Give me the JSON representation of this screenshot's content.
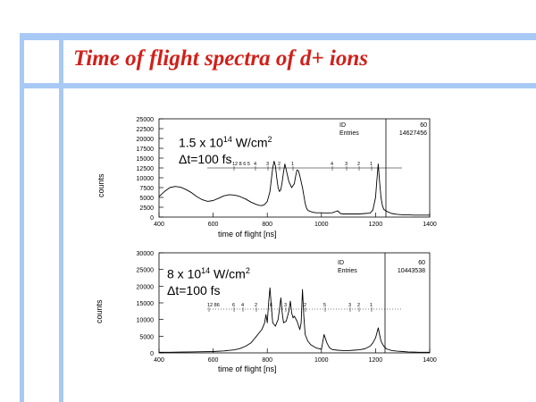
{
  "slide": {
    "title": "Time of flight spectra of d+ ions",
    "accent_color": "#a9c9f5",
    "title_color": "#d0201a"
  },
  "chart_data": [
    {
      "type": "line",
      "xlabel": "time of flight [ns]",
      "ylabel": "counts",
      "xlim": [
        400,
        1400
      ],
      "ylim": [
        0,
        25000
      ],
      "xticks": [
        400,
        600,
        800,
        1000,
        1200,
        1400
      ],
      "yticks": [
        0,
        2500,
        5000,
        7500,
        10000,
        12500,
        15000,
        17500,
        20000,
        22500,
        25000
      ],
      "ytick_labels": [
        "0",
        "2500",
        "5000",
        "7500",
        "10000",
        "12500",
        "15000",
        "17500",
        "20000",
        "22500",
        "25000"
      ],
      "conditions": {
        "intensity_base": "1.5 x 10",
        "intensity_exp": "14",
        "intensity_unit": " W/cm",
        "intensity_unit_exp": "2",
        "delta_t": "Δt=100 fs"
      },
      "stats": {
        "id_label": "ID",
        "id_value": "60",
        "entries_label": "Entries",
        "entries_value": "14627456"
      },
      "charge_state_labels": [
        "12 8 6 5",
        "4",
        "3",
        "2",
        "1",
        "4",
        "3",
        "2",
        "1"
      ],
      "series": [
        {
          "x": [
            400,
            420,
            440,
            460,
            480,
            500,
            520,
            540,
            560,
            580,
            600,
            620,
            640,
            660,
            680,
            700,
            720,
            740,
            760,
            770,
            780,
            790,
            800,
            810,
            815,
            820,
            825,
            830,
            835,
            840,
            845,
            850,
            855,
            860,
            865,
            870,
            880,
            890,
            900,
            905,
            910,
            915,
            920,
            925,
            930,
            935,
            940,
            945,
            950,
            960,
            970,
            980,
            1000,
            1020,
            1040,
            1060,
            1070,
            1080,
            1100,
            1120,
            1140,
            1160,
            1180,
            1190,
            1200,
            1205,
            1210,
            1215,
            1220,
            1225,
            1230,
            1240,
            1260,
            1280,
            1300,
            1320,
            1340,
            1360,
            1380,
            1400
          ],
          "y": [
            5200,
            6500,
            7500,
            7800,
            7600,
            7000,
            6200,
            5200,
            4400,
            4000,
            4200,
            4800,
            5400,
            5700,
            5600,
            5200,
            4600,
            3800,
            3200,
            3000,
            2900,
            3200,
            4000,
            6500,
            9500,
            12500,
            14200,
            13000,
            10000,
            7500,
            6500,
            7000,
            9000,
            11500,
            13500,
            12000,
            9000,
            7500,
            8500,
            10500,
            12000,
            11800,
            10500,
            9000,
            7500,
            5500,
            3500,
            2300,
            1700,
            1400,
            1200,
            1100,
            1100,
            1050,
            1100,
            1600,
            900,
            800,
            800,
            800,
            800,
            900,
            1000,
            1800,
            5000,
            9500,
            13500,
            9000,
            5000,
            3000,
            2000,
            1500,
            900,
            700,
            600,
            600,
            500,
            500,
            500,
            500
          ]
        }
      ]
    },
    {
      "type": "line",
      "xlabel": "time of flight [ns]",
      "ylabel": "counts",
      "xlim": [
        400,
        1400
      ],
      "ylim": [
        0,
        30000
      ],
      "xticks": [
        400,
        600,
        800,
        1000,
        1200,
        1400
      ],
      "yticks": [
        0,
        5000,
        10000,
        15000,
        20000,
        25000,
        30000
      ],
      "ytick_labels": [
        "0",
        "5000",
        "10000",
        "15000",
        "20000",
        "25000",
        "30000"
      ],
      "conditions": {
        "intensity_base": "8 x 10",
        "intensity_exp": "14",
        "intensity_unit": " W/cm",
        "intensity_unit_exp": "2",
        "delta_t": "Δt=100 fs"
      },
      "stats": {
        "id_label": "ID",
        "id_value": "60",
        "entries_label": "Entries",
        "entries_value": "10443538"
      },
      "charge_state_labels": [
        "12 86",
        "6",
        "4",
        "2",
        "6",
        "3",
        "2",
        "5",
        "3",
        "2",
        "1"
      ],
      "series": [
        {
          "x": [
            400,
            440,
            480,
            520,
            560,
            600,
            640,
            680,
            700,
            720,
            740,
            750,
            760,
            770,
            780,
            790,
            795,
            800,
            805,
            810,
            815,
            820,
            830,
            840,
            845,
            850,
            855,
            860,
            870,
            880,
            885,
            890,
            895,
            900,
            910,
            920,
            925,
            930,
            935,
            940,
            950,
            960,
            980,
            1000,
            1010,
            1020,
            1030,
            1040,
            1060,
            1080,
            1100,
            1120,
            1140,
            1160,
            1180,
            1190,
            1200,
            1205,
            1210,
            1215,
            1220,
            1230,
            1240,
            1260,
            1280,
            1300,
            1320,
            1340,
            1360,
            1380,
            1400
          ],
          "y": [
            200,
            200,
            250,
            300,
            350,
            400,
            600,
            900,
            1300,
            2000,
            3000,
            4000,
            5000,
            6000,
            7000,
            9000,
            11500,
            9000,
            15000,
            19500,
            14000,
            9000,
            8000,
            10000,
            13000,
            16500,
            12000,
            9000,
            9500,
            12500,
            15500,
            12000,
            10500,
            11000,
            9500,
            7000,
            9000,
            19000,
            11000,
            5500,
            3500,
            2500,
            1500,
            1100,
            5500,
            3000,
            1500,
            1000,
            800,
            700,
            700,
            800,
            900,
            1200,
            2000,
            3000,
            4500,
            6000,
            7500,
            5500,
            3500,
            2000,
            1200,
            700,
            500,
            400,
            300,
            250,
            200,
            200,
            200
          ]
        }
      ]
    }
  ]
}
